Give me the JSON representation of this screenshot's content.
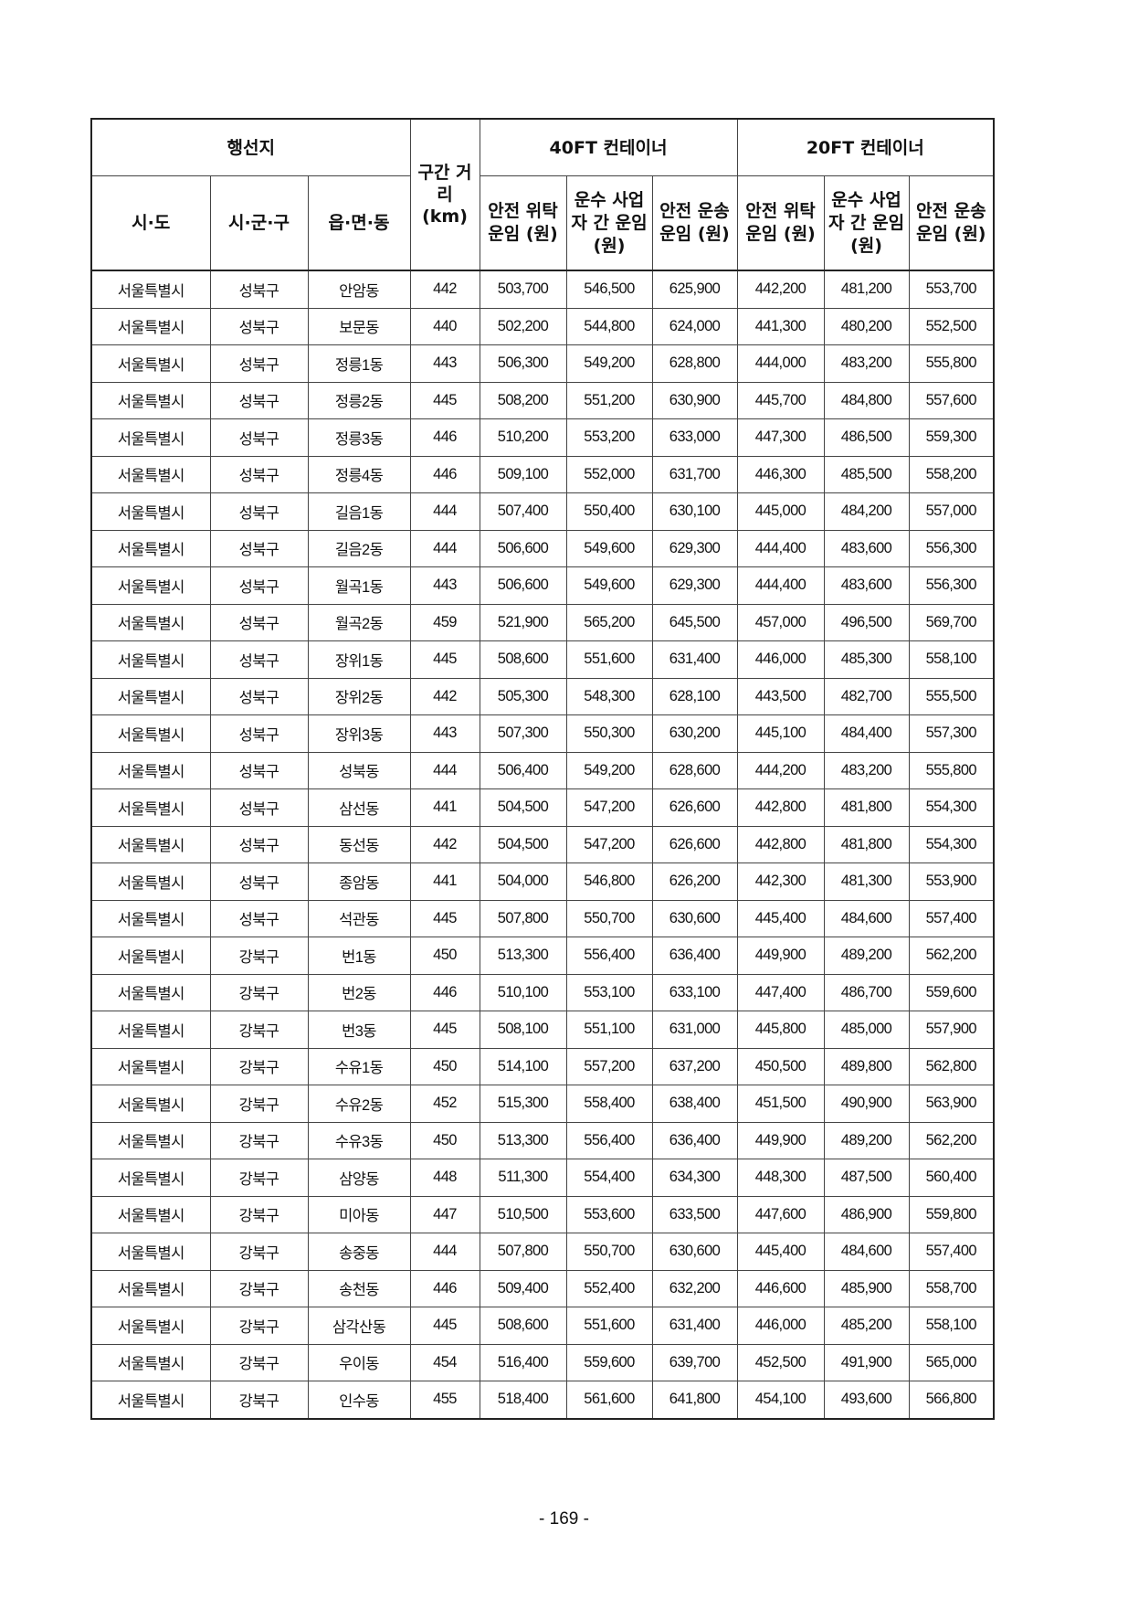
{
  "header": {
    "group_destination": "행선지",
    "col_sido": "시·도",
    "col_sigungu": "시·군·구",
    "col_eupmyeondong": "읍·면·동",
    "col_distance": "구간 거리 (km)",
    "group_40ft": "40FT 컨테이너",
    "group_20ft": "20FT 컨테이너",
    "sub_cols": [
      "안전 위탁 운임 (원)",
      "운수 사업자 간 운임 (원)",
      "안전 운송 운임 (원)",
      "안전 위탁 운임 (원)",
      "운수 사업자 간 운임 (원)",
      "안전 운송 운임 (원)"
    ]
  },
  "rows": [
    [
      "서울특별시",
      "성북구",
      "안암동",
      "442",
      "503,700",
      "546,500",
      "625,900",
      "442,200",
      "481,200",
      "553,700"
    ],
    [
      "서울특별시",
      "성북구",
      "보문동",
      "440",
      "502,200",
      "544,800",
      "624,000",
      "441,300",
      "480,200",
      "552,500"
    ],
    [
      "서울특별시",
      "성북구",
      "정릉1동",
      "443",
      "506,300",
      "549,200",
      "628,800",
      "444,000",
      "483,200",
      "555,800"
    ],
    [
      "서울특별시",
      "성북구",
      "정릉2동",
      "445",
      "508,200",
      "551,200",
      "630,900",
      "445,700",
      "484,800",
      "557,600"
    ],
    [
      "서울특별시",
      "성북구",
      "정릉3동",
      "446",
      "510,200",
      "553,200",
      "633,000",
      "447,300",
      "486,500",
      "559,300"
    ],
    [
      "서울특별시",
      "성북구",
      "정릉4동",
      "446",
      "509,100",
      "552,000",
      "631,700",
      "446,300",
      "485,500",
      "558,200"
    ],
    [
      "서울특별시",
      "성북구",
      "길음1동",
      "444",
      "507,400",
      "550,400",
      "630,100",
      "445,000",
      "484,200",
      "557,000"
    ],
    [
      "서울특별시",
      "성북구",
      "길음2동",
      "444",
      "506,600",
      "549,600",
      "629,300",
      "444,400",
      "483,600",
      "556,300"
    ],
    [
      "서울특별시",
      "성북구",
      "월곡1동",
      "443",
      "506,600",
      "549,600",
      "629,300",
      "444,400",
      "483,600",
      "556,300"
    ],
    [
      "서울특별시",
      "성북구",
      "월곡2동",
      "459",
      "521,900",
      "565,200",
      "645,500",
      "457,000",
      "496,500",
      "569,700"
    ],
    [
      "서울특별시",
      "성북구",
      "장위1동",
      "445",
      "508,600",
      "551,600",
      "631,400",
      "446,000",
      "485,300",
      "558,100"
    ],
    [
      "서울특별시",
      "성북구",
      "장위2동",
      "442",
      "505,300",
      "548,300",
      "628,100",
      "443,500",
      "482,700",
      "555,500"
    ],
    [
      "서울특별시",
      "성북구",
      "장위3동",
      "443",
      "507,300",
      "550,300",
      "630,200",
      "445,100",
      "484,400",
      "557,300"
    ],
    [
      "서울특별시",
      "성북구",
      "성북동",
      "444",
      "506,400",
      "549,200",
      "628,600",
      "444,200",
      "483,200",
      "555,800"
    ],
    [
      "서울특별시",
      "성북구",
      "삼선동",
      "441",
      "504,500",
      "547,200",
      "626,600",
      "442,800",
      "481,800",
      "554,300"
    ],
    [
      "서울특별시",
      "성북구",
      "동선동",
      "442",
      "504,500",
      "547,200",
      "626,600",
      "442,800",
      "481,800",
      "554,300"
    ],
    [
      "서울특별시",
      "성북구",
      "종암동",
      "441",
      "504,000",
      "546,800",
      "626,200",
      "442,300",
      "481,300",
      "553,900"
    ],
    [
      "서울특별시",
      "성북구",
      "석관동",
      "445",
      "507,800",
      "550,700",
      "630,600",
      "445,400",
      "484,600",
      "557,400"
    ],
    [
      "서울특별시",
      "강북구",
      "번1동",
      "450",
      "513,300",
      "556,400",
      "636,400",
      "449,900",
      "489,200",
      "562,200"
    ],
    [
      "서울특별시",
      "강북구",
      "번2동",
      "446",
      "510,100",
      "553,100",
      "633,100",
      "447,400",
      "486,700",
      "559,600"
    ],
    [
      "서울특별시",
      "강북구",
      "번3동",
      "445",
      "508,100",
      "551,100",
      "631,000",
      "445,800",
      "485,000",
      "557,900"
    ],
    [
      "서울특별시",
      "강북구",
      "수유1동",
      "450",
      "514,100",
      "557,200",
      "637,200",
      "450,500",
      "489,800",
      "562,800"
    ],
    [
      "서울특별시",
      "강북구",
      "수유2동",
      "452",
      "515,300",
      "558,400",
      "638,400",
      "451,500",
      "490,900",
      "563,900"
    ],
    [
      "서울특별시",
      "강북구",
      "수유3동",
      "450",
      "513,300",
      "556,400",
      "636,400",
      "449,900",
      "489,200",
      "562,200"
    ],
    [
      "서울특별시",
      "강북구",
      "삼양동",
      "448",
      "511,300",
      "554,400",
      "634,300",
      "448,300",
      "487,500",
      "560,400"
    ],
    [
      "서울특별시",
      "강북구",
      "미아동",
      "447",
      "510,500",
      "553,600",
      "633,500",
      "447,600",
      "486,900",
      "559,800"
    ],
    [
      "서울특별시",
      "강북구",
      "송중동",
      "444",
      "507,800",
      "550,700",
      "630,600",
      "445,400",
      "484,600",
      "557,400"
    ],
    [
      "서울특별시",
      "강북구",
      "송천동",
      "446",
      "509,400",
      "552,400",
      "632,200",
      "446,600",
      "485,900",
      "558,700"
    ],
    [
      "서울특별시",
      "강북구",
      "삼각산동",
      "445",
      "508,600",
      "551,600",
      "631,400",
      "446,000",
      "485,200",
      "558,100"
    ],
    [
      "서울특별시",
      "강북구",
      "우이동",
      "454",
      "516,400",
      "559,600",
      "639,700",
      "452,500",
      "491,900",
      "565,000"
    ],
    [
      "서울특별시",
      "강북구",
      "인수동",
      "455",
      "518,400",
      "561,600",
      "641,800",
      "454,100",
      "493,600",
      "566,800"
    ]
  ],
  "page_number": "- 169 -"
}
